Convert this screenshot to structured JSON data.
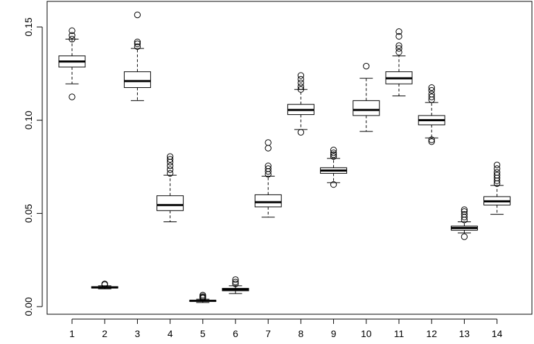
{
  "chart_data": {
    "type": "boxplot",
    "categories": [
      "1",
      "2",
      "3",
      "4",
      "5",
      "6",
      "7",
      "8",
      "9",
      "10",
      "11",
      "12",
      "13",
      "14"
    ],
    "ylim": [
      -0.004,
      0.16
    ],
    "yticks": [
      0.0,
      0.05,
      0.1,
      0.15
    ],
    "ytick_labels": [
      "0.00",
      "0.05",
      "0.10",
      "0.15"
    ],
    "grid": false,
    "boxes": [
      {
        "whisker_low": 0.1195,
        "q1": 0.1285,
        "median": 0.1315,
        "q3": 0.1345,
        "whisker_high": 0.1435,
        "outliers": [
          0.1125,
          0.1435,
          0.1455,
          0.148
        ]
      },
      {
        "whisker_low": 0.0095,
        "q1": 0.01,
        "median": 0.0103,
        "q3": 0.0107,
        "whisker_high": 0.0112,
        "outliers": [
          0.0118,
          0.0122
        ]
      },
      {
        "whisker_low": 0.1105,
        "q1": 0.1175,
        "median": 0.121,
        "q3": 0.126,
        "whisker_high": 0.1385,
        "outliers": [
          0.1395,
          0.141,
          0.142,
          0.1565
        ]
      },
      {
        "whisker_low": 0.0455,
        "q1": 0.0515,
        "median": 0.0545,
        "q3": 0.0595,
        "whisker_high": 0.0705,
        "outliers": [
          0.0715,
          0.0735,
          0.0755,
          0.0775,
          0.079,
          0.0805
        ]
      },
      {
        "whisker_low": 0.0022,
        "q1": 0.0028,
        "median": 0.0031,
        "q3": 0.0034,
        "whisker_high": 0.004,
        "outliers": [
          0.0045,
          0.005,
          0.0055,
          0.0062
        ]
      },
      {
        "whisker_low": 0.007,
        "q1": 0.0085,
        "median": 0.0092,
        "q3": 0.0098,
        "whisker_high": 0.0112,
        "outliers": [
          0.0122,
          0.0132,
          0.0145
        ]
      },
      {
        "whisker_low": 0.048,
        "q1": 0.0535,
        "median": 0.056,
        "q3": 0.06,
        "whisker_high": 0.07,
        "outliers": [
          0.071,
          0.0725,
          0.074,
          0.0755,
          0.085,
          0.088
        ]
      },
      {
        "whisker_low": 0.095,
        "q1": 0.103,
        "median": 0.1055,
        "q3": 0.1085,
        "whisker_high": 0.1165,
        "outliers": [
          0.0935,
          0.1165,
          0.118,
          0.12,
          0.122,
          0.124
        ]
      },
      {
        "whisker_low": 0.0665,
        "q1": 0.0715,
        "median": 0.073,
        "q3": 0.0745,
        "whisker_high": 0.0795,
        "outliers": [
          0.0655,
          0.0805,
          0.0815,
          0.0825,
          0.084
        ]
      },
      {
        "whisker_low": 0.094,
        "q1": 0.1025,
        "median": 0.1055,
        "q3": 0.1105,
        "whisker_high": 0.1225,
        "outliers": [
          0.129
        ]
      },
      {
        "whisker_low": 0.113,
        "q1": 0.1195,
        "median": 0.1225,
        "q3": 0.126,
        "whisker_high": 0.1345,
        "outliers": [
          0.1365,
          0.1385,
          0.14,
          0.145,
          0.1475
        ]
      },
      {
        "whisker_low": 0.0905,
        "q1": 0.0975,
        "median": 0.1,
        "q3": 0.1025,
        "whisker_high": 0.1095,
        "outliers": [
          0.0885,
          0.0895,
          0.111,
          0.1125,
          0.114,
          0.116,
          0.1175
        ]
      },
      {
        "whisker_low": 0.0395,
        "q1": 0.041,
        "median": 0.0422,
        "q3": 0.0432,
        "whisker_high": 0.0455,
        "outliers": [
          0.0375,
          0.0465,
          0.048,
          0.0495,
          0.051,
          0.052
        ]
      },
      {
        "whisker_low": 0.0495,
        "q1": 0.0545,
        "median": 0.0565,
        "q3": 0.059,
        "whisker_high": 0.065,
        "outliers": [
          0.066,
          0.0675,
          0.069,
          0.0705,
          0.072,
          0.074,
          0.076
        ]
      }
    ]
  }
}
